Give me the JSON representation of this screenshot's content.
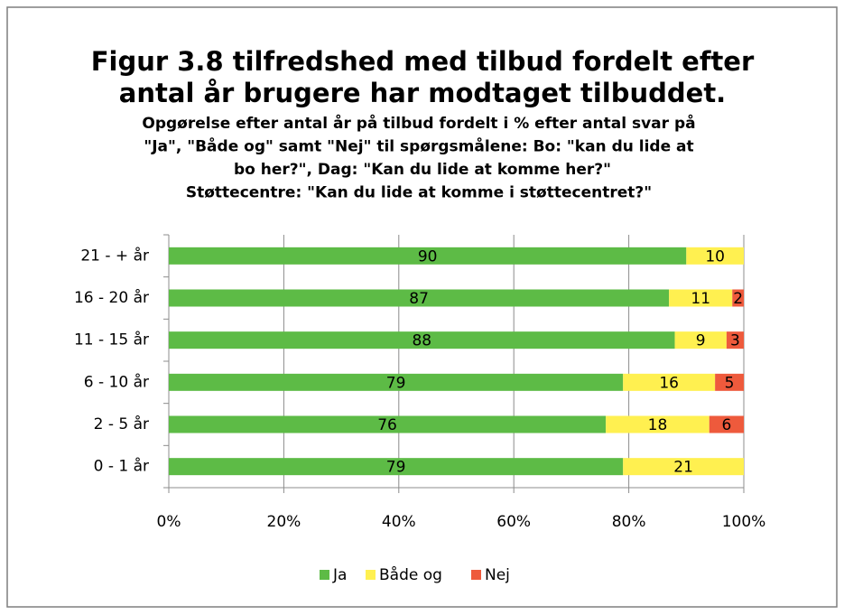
{
  "chart_data": {
    "type": "stacked_barh",
    "title": [
      "Figur 3.8 tilfredshed med tilbud fordelt efter",
      "antal år brugere har modtaget tilbuddet."
    ],
    "subtitle": [
      "Opgørelse efter antal år på tilbud fordelt i % efter antal svar på",
      "\"Ja\", \"Både og\" samt \"Nej\" til spørgsmålene: Bo: \"kan du lide at",
      "bo her?\", Dag: \"Kan du lide at komme her?\"",
      "Støttecentre: \"Kan du lide at komme i støttecentret?\""
    ],
    "categories": [
      "21 - + år",
      "16 - 20 år",
      "11 - 15 år",
      "6 - 10 år",
      "2 - 5 år",
      "0 - 1 år"
    ],
    "series": [
      {
        "name": "Ja",
        "color": "#5dbb46",
        "values": [
          90,
          87,
          88,
          79,
          76,
          79
        ]
      },
      {
        "name": "Både og",
        "color": "#fff050",
        "values": [
          10,
          11,
          9,
          16,
          18,
          21
        ]
      },
      {
        "name": "Nej",
        "color": "#ee5a3c",
        "values": [
          null,
          2,
          3,
          5,
          6,
          null
        ]
      }
    ],
    "xlim": [
      0,
      100
    ],
    "xticks": [
      {
        "value": 0,
        "label": "0%"
      },
      {
        "value": 20,
        "label": "20%"
      },
      {
        "value": 40,
        "label": "40%"
      },
      {
        "value": 60,
        "label": "60%"
      },
      {
        "value": 80,
        "label": "80%"
      },
      {
        "value": 100,
        "label": "100%"
      }
    ],
    "grid": true,
    "legend": "bottom"
  }
}
